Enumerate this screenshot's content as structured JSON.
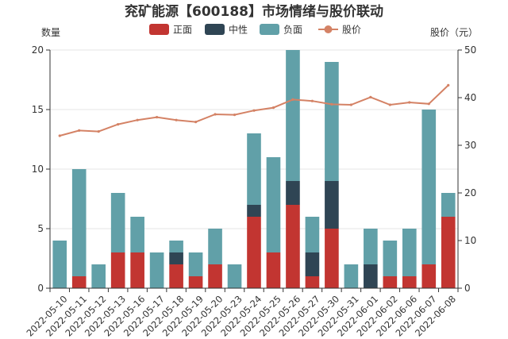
{
  "chart_data": {
    "type": "bar",
    "title": "兖矿能源【600188】市场情绪与股价联动",
    "ylabel_left": "数量",
    "ylabel_right": "股价（元）",
    "ylim_left": [
      0,
      20
    ],
    "ylim_right": [
      0,
      50
    ],
    "yticks_left": [
      0,
      5,
      10,
      15,
      20
    ],
    "yticks_right": [
      0,
      10,
      20,
      30,
      40,
      50
    ],
    "categories": [
      "2022-05-10",
      "2022-05-11",
      "2022-05-12",
      "2022-05-13",
      "2022-05-16",
      "2022-05-17",
      "2022-05-18",
      "2022-05-19",
      "2022-05-20",
      "2022-05-23",
      "2022-05-24",
      "2022-05-25",
      "2022-05-26",
      "2022-05-27",
      "2022-05-30",
      "2022-05-31",
      "2022-06-01",
      "2022-06-02",
      "2022-06-06",
      "2022-06-07",
      "2022-06-08"
    ],
    "series": [
      {
        "name": "正面",
        "kind": "bar",
        "color": "#c23531",
        "values": [
          0,
          1,
          0,
          3,
          3,
          0,
          2,
          1,
          2,
          0,
          6,
          3,
          7,
          1,
          5,
          0,
          0,
          1,
          1,
          2,
          6
        ]
      },
      {
        "name": "中性",
        "kind": "bar",
        "color": "#2f4554",
        "values": [
          0,
          0,
          0,
          0,
          0,
          0,
          1,
          0,
          0,
          0,
          1,
          0,
          2,
          2,
          4,
          0,
          2,
          0,
          0,
          0,
          0
        ]
      },
      {
        "name": "负面",
        "kind": "bar",
        "color": "#61a0a8",
        "values": [
          4,
          9,
          2,
          5,
          3,
          3,
          1,
          2,
          3,
          2,
          6,
          8,
          11,
          3,
          10,
          2,
          3,
          3,
          4,
          13,
          2
        ]
      },
      {
        "name": "股价",
        "kind": "line",
        "color": "#d48265",
        "values": [
          32.0,
          33.1,
          32.9,
          34.4,
          35.3,
          35.9,
          35.3,
          34.9,
          36.5,
          36.4,
          37.3,
          37.9,
          39.6,
          39.3,
          38.6,
          38.5,
          40.1,
          38.5,
          39.0,
          38.7,
          42.6
        ]
      }
    ]
  }
}
